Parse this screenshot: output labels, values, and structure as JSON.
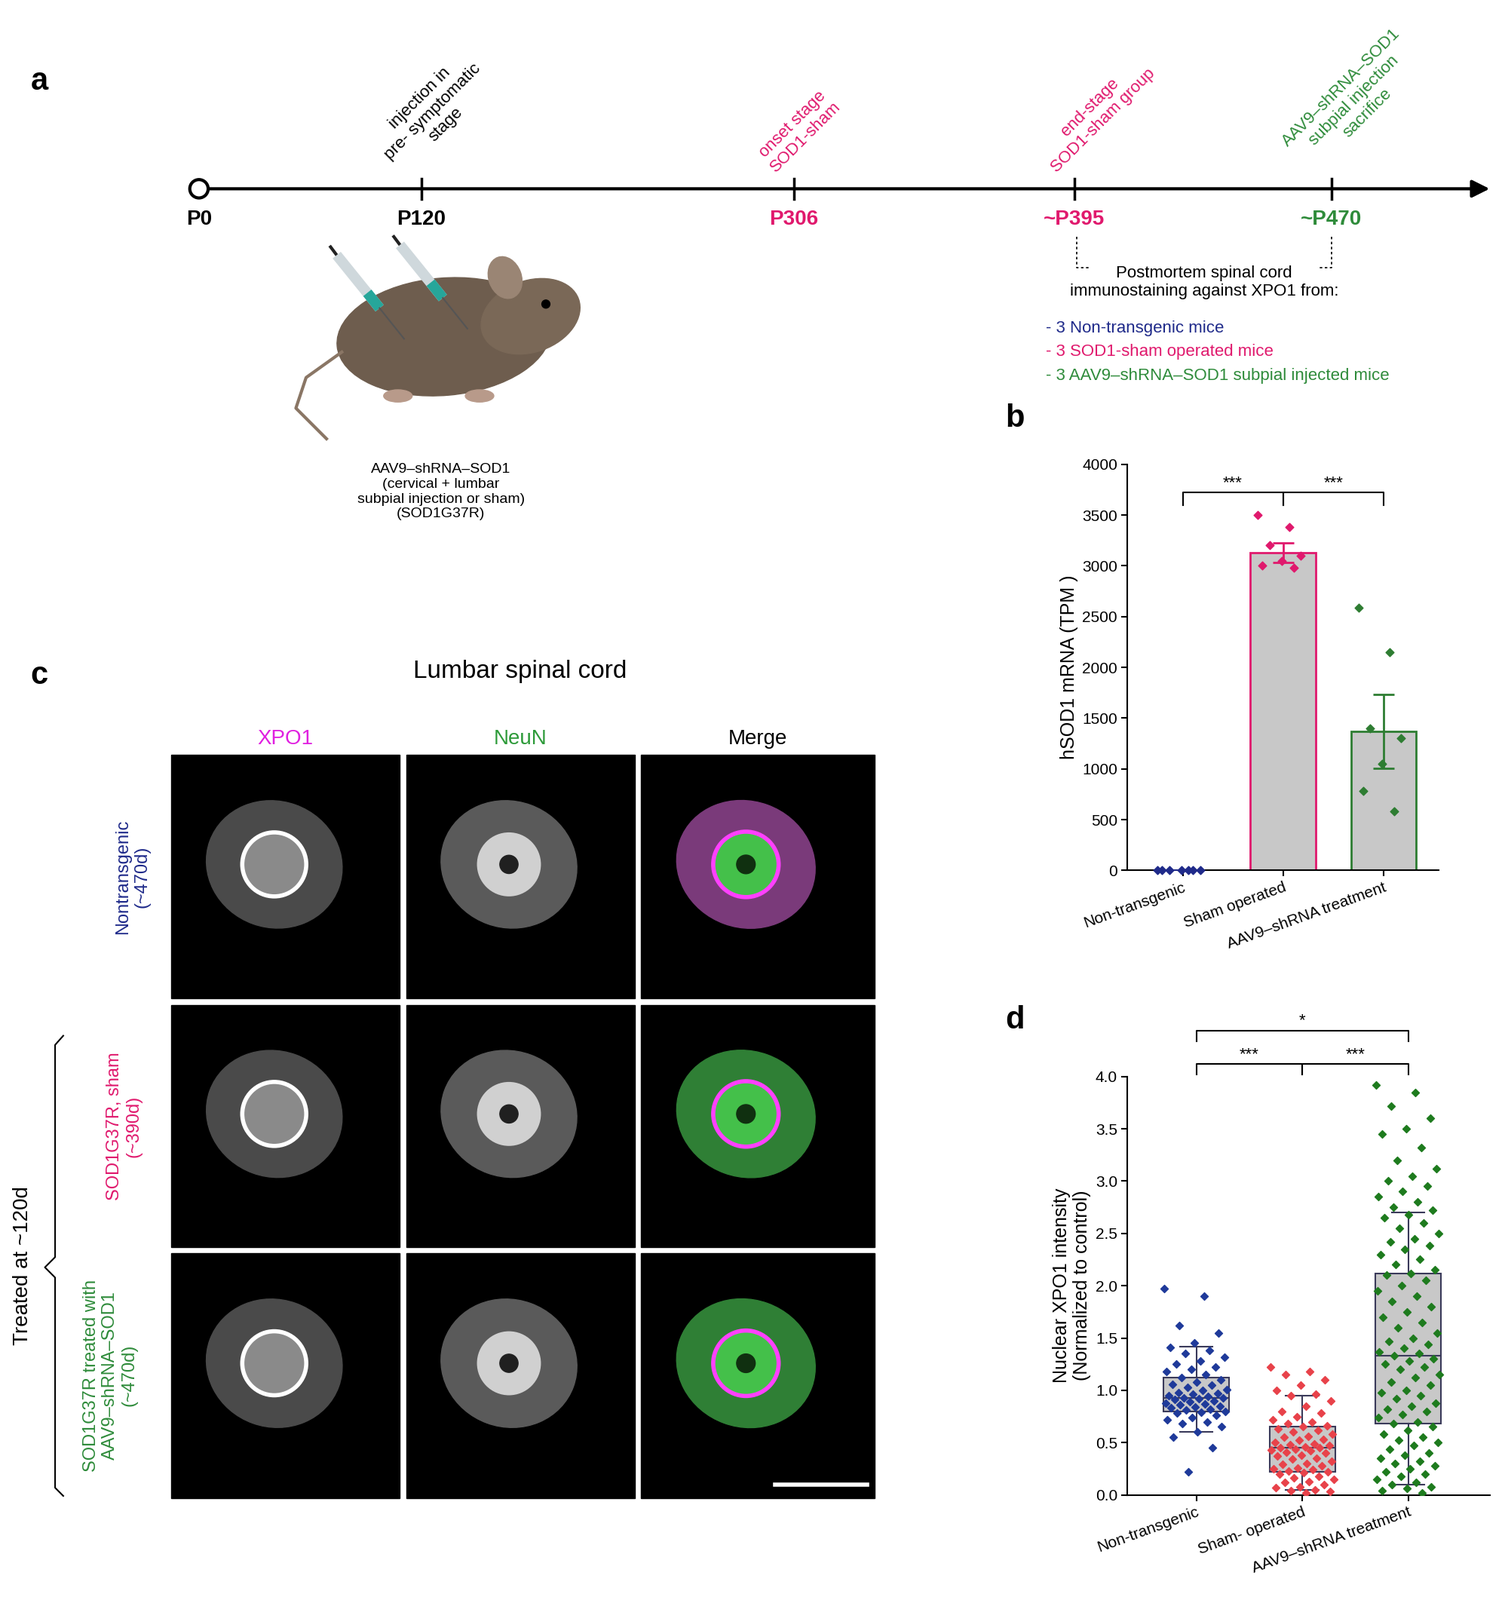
{
  "timeline": {
    "panel": "a",
    "ticks": [
      {
        "label": "P0",
        "color": "#000000"
      },
      {
        "label": "P120",
        "color": "#000000",
        "note": "injection in\npre- symptomatic\nstage"
      },
      {
        "label": "P306",
        "color": "#e0196d",
        "note": "onset stage\nSOD1-sham"
      },
      {
        "label": "~P395",
        "color": "#e0196d",
        "note": "end-stage\nSOD1-sham group"
      },
      {
        "label": "~P470",
        "color": "#2e8b3a",
        "note": "AAV9–shRNA–SOD1\nsubpial injection\nsacrifice"
      }
    ],
    "mouse_caption": "AAV9–shRNA–SOD1\n(cervical + lumbar\nsubpial injection or sham)\n(SOD1G37R)",
    "postmortem": {
      "text": "Postmortem spinal cord\nimmunostaining against XPO1 from:",
      "items": [
        {
          "text": "- 3 Non-transgenic mice",
          "color": "#1f2a8a"
        },
        {
          "text": "- 3 SOD1-sham operated mice",
          "color": "#e0196d"
        },
        {
          "text": "- 3 AAV9–shRNA–SOD1 subpial injected mice",
          "color": "#2e8b3a"
        }
      ]
    }
  },
  "images": {
    "panel": "c",
    "title": "Lumbar spinal cord",
    "columns": [
      {
        "label": "XPO1",
        "color": "#e020e0"
      },
      {
        "label": "NeuN",
        "color": "#2e9b3a"
      },
      {
        "label": "Merge",
        "color": "#000000"
      }
    ],
    "rows": [
      {
        "label": "Nontransgenic\n(~470d)",
        "color": "#1f2a8a"
      },
      {
        "label": "SOD1G37R, sham\n(~390d)",
        "color": "#e0196d"
      },
      {
        "label": "SOD1G37R treated with\nAAV9–shRNA–SOD1\n(~470d)",
        "color": "#2e8b3a"
      }
    ],
    "group_label": "Treated at ~120d"
  },
  "chart_data": [
    {
      "panel": "b",
      "type": "bar",
      "categories": [
        "Non-transgenic",
        "Sham operated",
        "AAV9–shRNA treatment"
      ],
      "values": [
        0,
        3130,
        1370
      ],
      "errors": [
        0,
        95,
        365
      ],
      "points": [
        [
          0,
          0,
          0,
          0,
          0,
          0,
          0
        ],
        [
          3500,
          3380,
          3200,
          3100,
          3050,
          3000,
          2980
        ],
        [
          2590,
          2150,
          1400,
          1300,
          1050,
          780,
          580
        ]
      ],
      "colors": [
        "#1f2a8a",
        "#e0196d",
        "#2e7d32"
      ],
      "y_label": "hSOD1 mRNA (TPM )",
      "ylim": [
        0,
        4000
      ],
      "yticks": [
        0,
        500,
        1000,
        1500,
        2000,
        2500,
        3000,
        3500,
        4000
      ],
      "significance": [
        {
          "between": [
            "Non-transgenic",
            "Sham operated"
          ],
          "label": "***"
        },
        {
          "between": [
            "Sham operated",
            "AAV9–shRNA treatment"
          ],
          "label": "***"
        }
      ]
    },
    {
      "panel": "d",
      "type": "box",
      "categories": [
        "Non-transgenic",
        "Sham- operated",
        "AAV9–shRNA treatment"
      ],
      "stats": [
        {
          "whislo": 0.6,
          "q1": 0.8,
          "med": 0.93,
          "q3": 1.12,
          "whishi": 1.42
        },
        {
          "whislo": 0.05,
          "q1": 0.22,
          "med": 0.45,
          "q3": 0.65,
          "whishi": 0.95
        },
        {
          "whislo": 0.1,
          "q1": 0.68,
          "med": 1.33,
          "q3": 2.12,
          "whishi": 2.7
        }
      ],
      "points": [
        [
          1.97,
          1.9,
          1.62,
          1.55,
          1.45,
          1.41,
          1.38,
          1.35,
          1.32,
          1.28,
          1.25,
          1.22,
          1.2,
          1.18,
          1.15,
          1.12,
          1.1,
          1.08,
          1.06,
          1.05,
          1.03,
          1.01,
          1.0,
          0.98,
          0.97,
          0.96,
          0.95,
          0.94,
          0.93,
          0.93,
          0.92,
          0.91,
          0.9,
          0.89,
          0.88,
          0.87,
          0.86,
          0.85,
          0.84,
          0.83,
          0.82,
          0.81,
          0.8,
          0.79,
          0.78,
          0.76,
          0.74,
          0.72,
          0.7,
          0.68,
          0.65,
          0.6,
          0.55,
          0.45,
          0.22
        ],
        [
          1.22,
          1.18,
          1.15,
          1.1,
          1.05,
          1.0,
          0.96,
          0.95,
          0.9,
          0.85,
          0.8,
          0.78,
          0.75,
          0.72,
          0.7,
          0.68,
          0.66,
          0.65,
          0.63,
          0.62,
          0.6,
          0.58,
          0.56,
          0.55,
          0.53,
          0.52,
          0.5,
          0.49,
          0.48,
          0.47,
          0.46,
          0.45,
          0.45,
          0.44,
          0.43,
          0.42,
          0.41,
          0.4,
          0.38,
          0.37,
          0.35,
          0.34,
          0.32,
          0.3,
          0.29,
          0.28,
          0.26,
          0.25,
          0.24,
          0.23,
          0.22,
          0.21,
          0.2,
          0.18,
          0.16,
          0.15,
          0.13,
          0.12,
          0.1,
          0.08,
          0.07,
          0.05,
          0.04,
          0.03,
          0.02
        ],
        [
          3.92,
          3.85,
          3.72,
          3.6,
          3.5,
          3.45,
          3.32,
          3.2,
          3.12,
          3.05,
          3.0,
          2.95,
          2.9,
          2.85,
          2.8,
          2.75,
          2.72,
          2.68,
          2.65,
          2.6,
          2.55,
          2.5,
          2.45,
          2.42,
          2.38,
          2.35,
          2.3,
          2.25,
          2.2,
          2.15,
          2.12,
          2.1,
          2.05,
          2.0,
          1.95,
          1.9,
          1.85,
          1.8,
          1.75,
          1.7,
          1.65,
          1.6,
          1.55,
          1.5,
          1.47,
          1.44,
          1.4,
          1.37,
          1.35,
          1.33,
          1.3,
          1.28,
          1.25,
          1.22,
          1.2,
          1.15,
          1.12,
          1.08,
          1.05,
          1.0,
          0.98,
          0.95,
          0.92,
          0.88,
          0.85,
          0.82,
          0.8,
          0.77,
          0.74,
          0.7,
          0.68,
          0.65,
          0.62,
          0.58,
          0.55,
          0.52,
          0.5,
          0.47,
          0.44,
          0.4,
          0.38,
          0.35,
          0.32,
          0.3,
          0.28,
          0.25,
          0.22,
          0.2,
          0.18,
          0.15,
          0.12,
          0.1,
          0.08,
          0.06,
          0.04,
          0.02
        ]
      ],
      "colors": [
        "#1f3a9a",
        "#e8424a",
        "#1e7b1e"
      ],
      "y_label": "Nuclear XPO1 intensity\n(Normalized to control)",
      "ylim": [
        0,
        4.0
      ],
      "yticks": [
        {
          "value": 0,
          "label": "0.0"
        },
        {
          "value": 0.5,
          "label": "0.5"
        },
        {
          "value": 1.0,
          "label": "1.0"
        },
        {
          "value": 1.5,
          "label": "1.5"
        },
        {
          "value": 2.0,
          "label": "2.0"
        },
        {
          "value": 2.5,
          "label": "2.5"
        },
        {
          "value": 3.0,
          "label": "3.0"
        },
        {
          "value": 3.5,
          "label": "3.5"
        },
        {
          "value": 4.0,
          "label": "4.0"
        }
      ],
      "significance": [
        {
          "between": [
            "Non-transgenic",
            "Sham- operated"
          ],
          "label": "***"
        },
        {
          "between": [
            "Sham- operated",
            "AAV9–shRNA treatment"
          ],
          "label": "***"
        },
        {
          "between": [
            "Non-transgenic",
            "AAV9–shRNA treatment"
          ],
          "label": "*"
        }
      ]
    }
  ]
}
